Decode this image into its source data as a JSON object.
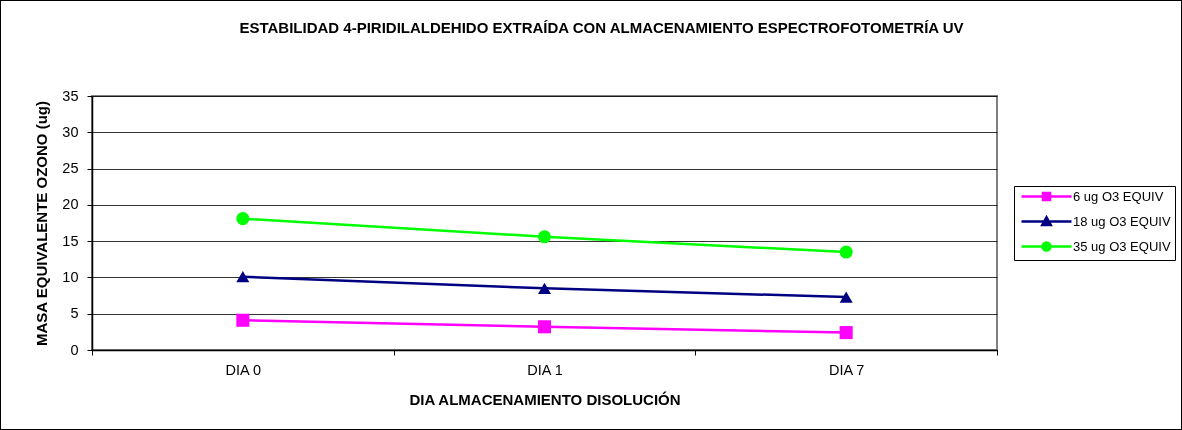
{
  "chart_data": {
    "type": "line",
    "title": "ESTABILIDAD 4-PIRIDILALDEHIDO EXTRAÍDA CON ALMACENAMIENTO ESPECTROFOTOMETRÍA UV",
    "xlabel": "DIA ALMACENAMIENTO DISOLUCIÓN",
    "ylabel": "MASA EQUIVALENTE OZONO (ug)",
    "categories": [
      "DIA 0",
      "DIA 1",
      "DIA 7"
    ],
    "series": [
      {
        "name": "6 ug O3 EQUIV",
        "color": "#ff00ff",
        "marker": "square",
        "values": [
          4.1,
          3.2,
          2.4
        ]
      },
      {
        "name": "18 ug O3 EQUIV",
        "color": "#000080",
        "marker": "triangle",
        "values": [
          10.1,
          8.5,
          7.3
        ]
      },
      {
        "name": "35 ug O3 EQUIV",
        "color": "#00ff00",
        "marker": "circle",
        "values": [
          18.1,
          15.6,
          13.5
        ]
      }
    ],
    "ylim": [
      0,
      35
    ],
    "yticks": [
      0,
      5,
      10,
      15,
      20,
      25,
      30,
      35
    ],
    "grid": "y",
    "legend": "right"
  }
}
